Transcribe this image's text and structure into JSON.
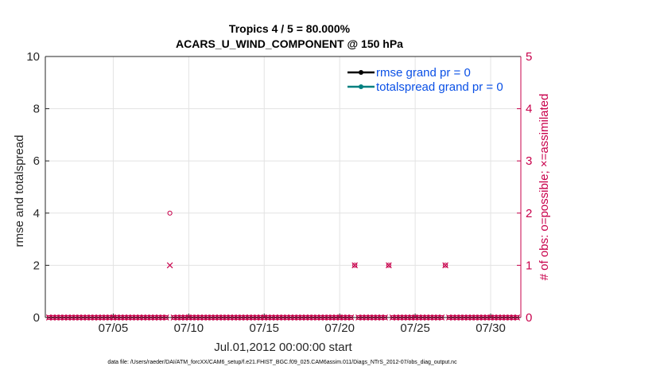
{
  "chart_data": {
    "type": "line",
    "title": "Tropics 4 / 5 = 80.000%",
    "subtitle": "ACARS_U_WIND_COMPONENT @ 150 hPa",
    "xlabel": "Jul.01,2012 00:00:00 start",
    "ylabel_left": "rmse and totalspread",
    "ylabel_right": "# of obs: o=possible; ×=assimilated",
    "xlim": [
      0.5,
      32.0
    ],
    "ylim_left": [
      0,
      10
    ],
    "ylim_right": [
      0,
      5
    ],
    "xticks": [
      {
        "value": 5,
        "label": "07/05"
      },
      {
        "value": 10,
        "label": "07/10"
      },
      {
        "value": 15,
        "label": "07/15"
      },
      {
        "value": 20,
        "label": "07/20"
      },
      {
        "value": 25,
        "label": "07/25"
      },
      {
        "value": 30,
        "label": "07/30"
      }
    ],
    "yticks_left": [
      "0",
      "2",
      "4",
      "6",
      "8",
      "10"
    ],
    "yticks_right": [
      "0",
      "1",
      "2",
      "3",
      "4",
      "5"
    ],
    "grid": true,
    "legend_position": "top-right",
    "series": [
      {
        "name": "rmse grand pr = 0",
        "color": "#000000",
        "values": []
      },
      {
        "name": "totalspread grand pr = 0",
        "color": "#008080",
        "values": []
      }
    ],
    "obs_color": "#c8004b",
    "obs_x": [
      0.75,
      1.0,
      1.25,
      1.5,
      1.75,
      2.0,
      2.25,
      2.5,
      2.75,
      3.0,
      3.25,
      3.5,
      3.75,
      4.0,
      4.25,
      4.5,
      4.75,
      5.0,
      5.25,
      5.5,
      5.75,
      6.0,
      6.25,
      6.5,
      6.75,
      7.0,
      7.25,
      7.5,
      7.75,
      8.0,
      8.25,
      8.5,
      8.75,
      9.0,
      9.25,
      9.5,
      9.75,
      10.0,
      10.25,
      10.5,
      10.75,
      11.0,
      11.25,
      11.5,
      11.75,
      12.0,
      12.25,
      12.5,
      12.75,
      13.0,
      13.25,
      13.5,
      13.75,
      14.0,
      14.25,
      14.5,
      14.75,
      15.0,
      15.25,
      15.5,
      15.75,
      16.0,
      16.25,
      16.5,
      16.75,
      17.0,
      17.25,
      17.5,
      17.75,
      18.0,
      18.25,
      18.5,
      18.75,
      19.0,
      19.25,
      19.5,
      19.75,
      20.0,
      20.25,
      20.5,
      20.75,
      21.0,
      21.25,
      21.5,
      21.75,
      22.0,
      22.25,
      22.5,
      22.75,
      23.0,
      23.25,
      23.5,
      23.75,
      24.0,
      24.25,
      24.5,
      24.75,
      25.0,
      25.25,
      25.5,
      25.75,
      26.0,
      26.25,
      26.5,
      26.75,
      27.0,
      27.25,
      27.5,
      27.75,
      28.0,
      28.25,
      28.5,
      28.75,
      29.0,
      29.25,
      29.5,
      29.75,
      30.0,
      30.25,
      30.5,
      30.75,
      31.0,
      31.25,
      31.5,
      31.75
    ],
    "obs_possible": [
      0,
      0,
      0,
      0,
      0,
      0,
      0,
      0,
      0,
      0,
      0,
      0,
      0,
      0,
      0,
      0,
      0,
      0,
      0,
      0,
      0,
      0,
      0,
      0,
      0,
      0,
      0,
      0,
      0,
      0,
      0,
      0,
      2,
      0,
      0,
      0,
      0,
      0,
      0,
      0,
      0,
      0,
      0,
      0,
      0,
      0,
      0,
      0,
      0,
      0,
      0,
      0,
      0,
      0,
      0,
      0,
      0,
      0,
      0,
      0,
      0,
      0,
      0,
      0,
      0,
      0,
      0,
      0,
      0,
      0,
      0,
      0,
      0,
      0,
      0,
      0,
      0,
      0,
      0,
      0,
      0,
      1,
      0,
      0,
      0,
      0,
      0,
      0,
      0,
      0,
      1,
      0,
      0,
      0,
      0,
      0,
      0,
      0,
      0,
      0,
      0,
      0,
      0,
      0,
      0,
      1,
      0,
      0,
      0,
      0,
      0,
      0,
      0,
      0,
      0,
      0,
      0,
      0,
      0,
      0,
      0,
      0,
      0,
      0,
      0
    ],
    "obs_assimilated": [
      0,
      0,
      0,
      0,
      0,
      0,
      0,
      0,
      0,
      0,
      0,
      0,
      0,
      0,
      0,
      0,
      0,
      0,
      0,
      0,
      0,
      0,
      0,
      0,
      0,
      0,
      0,
      0,
      0,
      0,
      0,
      0,
      1,
      0,
      0,
      0,
      0,
      0,
      0,
      0,
      0,
      0,
      0,
      0,
      0,
      0,
      0,
      0,
      0,
      0,
      0,
      0,
      0,
      0,
      0,
      0,
      0,
      0,
      0,
      0,
      0,
      0,
      0,
      0,
      0,
      0,
      0,
      0,
      0,
      0,
      0,
      0,
      0,
      0,
      0,
      0,
      0,
      0,
      0,
      0,
      0,
      1,
      0,
      0,
      0,
      0,
      0,
      0,
      0,
      0,
      1,
      0,
      0,
      0,
      0,
      0,
      0,
      0,
      0,
      0,
      0,
      0,
      0,
      0,
      0,
      1,
      0,
      0,
      0,
      0,
      0,
      0,
      0,
      0,
      0,
      0,
      0,
      0,
      0,
      0,
      0,
      0,
      0,
      0,
      0
    ]
  },
  "footer": "data file: /Users/raeder/DAI/ATM_forcXX/CAM6_setup/f.e21.FHIST_BGC.f09_025.CAM6assim.011/Diags_NTrS_2012-07/obs_diag_output.nc"
}
